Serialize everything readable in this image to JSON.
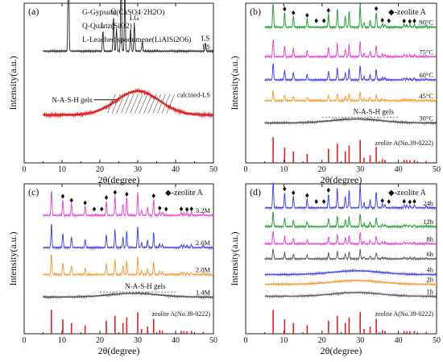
{
  "chart_data": [
    {
      "panel": "(a)",
      "type": "line",
      "xlabel": "2θ(degree)",
      "ylabel": "Intensity(a.u.)",
      "xlim": [
        0,
        50
      ],
      "xticks": [
        0,
        10,
        20,
        30,
        40,
        50
      ],
      "legend_text": [
        "G-Gypsum(CaSO4·2H2O)",
        "Q-Quartz(SiO2)",
        "L-Leached spodumene(LiAlSi2O6)"
      ],
      "series": [
        {
          "name": "LS",
          "color": "#222222",
          "baseline": 0.7,
          "peaks": [
            [
              11.7,
              0.7
            ],
            [
              20.8,
              0.13
            ],
            [
              23.6,
              0.22
            ],
            [
              24.4,
              0.14
            ],
            [
              25.6,
              0.5
            ],
            [
              26.6,
              0.38
            ],
            [
              28.1,
              0.14
            ],
            [
              29.1,
              0.18
            ],
            [
              31.2,
              0.06
            ],
            [
              47.9,
              0.05
            ]
          ]
        },
        {
          "name": "calcined-LS",
          "color": "#e02020",
          "baseline": 0.3,
          "hump": {
            "center": 30,
            "height": 0.15,
            "width": 8
          }
        }
      ],
      "peak_labels": [
        {
          "x": 11.7,
          "text": "G"
        },
        {
          "x": 20.8,
          "text": "L"
        },
        {
          "x": 23.6,
          "text": "Q"
        },
        {
          "x": 25.6,
          "text": "L"
        },
        {
          "x": 26.6,
          "text": "Q"
        },
        {
          "x": 29.1,
          "text": "LG"
        },
        {
          "x": 47.9,
          "text": "LS"
        }
      ],
      "annotations": [
        "N-A-S-H gels"
      ]
    },
    {
      "panel": "(b)",
      "type": "line",
      "xlabel": "2θ(degree)",
      "ylabel": "Intensity(a.u.)",
      "xlim": [
        0,
        50
      ],
      "xticks": [
        0,
        10,
        20,
        30,
        40,
        50
      ],
      "legend": "◆-zeolite A",
      "series": [
        {
          "name": "90°C",
          "color": "#1a9b2c",
          "baseline": 0.85,
          "scale": 0.62
        },
        {
          "name": "75°C",
          "color": "#e83ecf",
          "baseline": 0.665,
          "scale": 0.45
        },
        {
          "name": "60°C",
          "color": "#3a3ae6",
          "baseline": 0.52,
          "scale": 0.42
        },
        {
          "name": "45°C",
          "color": "#f5962a",
          "baseline": 0.39,
          "scale": 0.25
        },
        {
          "name": "30°C",
          "color": "#444444",
          "baseline": 0.25,
          "hump": true
        }
      ],
      "reference": "zeolite A(No.39-0222)",
      "annotations": [
        "N-A-S-H gels"
      ]
    },
    {
      "panel": "(c)",
      "type": "line",
      "xlabel": "2θ(degree)",
      "ylabel": "Intensity(a.u.)",
      "xlim": [
        0,
        50
      ],
      "xticks": [
        0,
        10,
        20,
        30,
        40,
        50
      ],
      "legend": "◆-zeolite A",
      "series": [
        {
          "name": "3.2M",
          "color": "#e83ecf",
          "baseline": 0.79,
          "scale": 0.7
        },
        {
          "name": "2.6M",
          "color": "#3a3ae6",
          "baseline": 0.575,
          "scale": 0.65
        },
        {
          "name": "2.0M",
          "color": "#f5962a",
          "baseline": 0.395,
          "scale": 0.55
        },
        {
          "name": "1.4M",
          "color": "#444444",
          "baseline": 0.245,
          "hump": true
        }
      ],
      "reference": "zeolite A(No.39-0222)",
      "annotations": [
        "N-A-S-H gels"
      ]
    },
    {
      "panel": "(d)",
      "type": "line",
      "xlabel": "2θ(degree)",
      "ylabel": "Intensity(a.u.)",
      "xlim": [
        0,
        50
      ],
      "xticks": [
        0,
        10,
        20,
        30,
        40,
        50
      ],
      "legend": "◆-zeolite A",
      "series": [
        {
          "name": "24h",
          "color": "#3a3ae6",
          "baseline": 0.84,
          "scale": 0.7
        },
        {
          "name": "12h",
          "color": "#1a9b2c",
          "baseline": 0.715,
          "scale": 0.4
        },
        {
          "name": "8h",
          "color": "#e83ecf",
          "baseline": 0.6,
          "scale": 0.35
        },
        {
          "name": "6h",
          "color": "#555555",
          "baseline": 0.5,
          "scale": 0.28
        },
        {
          "name": "4h",
          "color": "#3a3ae6",
          "baseline": 0.395,
          "hump": true
        },
        {
          "name": "2h",
          "color": "#f5962a",
          "baseline": 0.33,
          "hump": true
        },
        {
          "name": "1h",
          "color": "#555555",
          "baseline": 0.25,
          "hump": true
        }
      ],
      "reference": "zeolite A(No.39-0222)"
    }
  ],
  "zeolite_peaks": [
    [
      7.2,
      1.0
    ],
    [
      10.2,
      0.6
    ],
    [
      12.5,
      0.45
    ],
    [
      16.1,
      0.35
    ],
    [
      21.7,
      0.55
    ],
    [
      24.0,
      0.75
    ],
    [
      26.1,
      0.45
    ],
    [
      27.1,
      0.68
    ],
    [
      30.0,
      0.9
    ],
    [
      31.0,
      0.2
    ],
    [
      32.6,
      0.3
    ],
    [
      34.2,
      0.62
    ],
    [
      35.8,
      0.15
    ],
    [
      36.5,
      0.12
    ],
    [
      41.5,
      0.12
    ],
    [
      42.2,
      0.1
    ],
    [
      43.0,
      0.1
    ],
    [
      44.2,
      0.12
    ],
    [
      47.3,
      0.08
    ]
  ],
  "diamond_x_positions": [
    7.2,
    10.2,
    12.5,
    16.1,
    18.5,
    20.5,
    21.7,
    24.0,
    27.1,
    30.0,
    34.2,
    35.8,
    37.5,
    41.5,
    43.0,
    44.2
  ]
}
